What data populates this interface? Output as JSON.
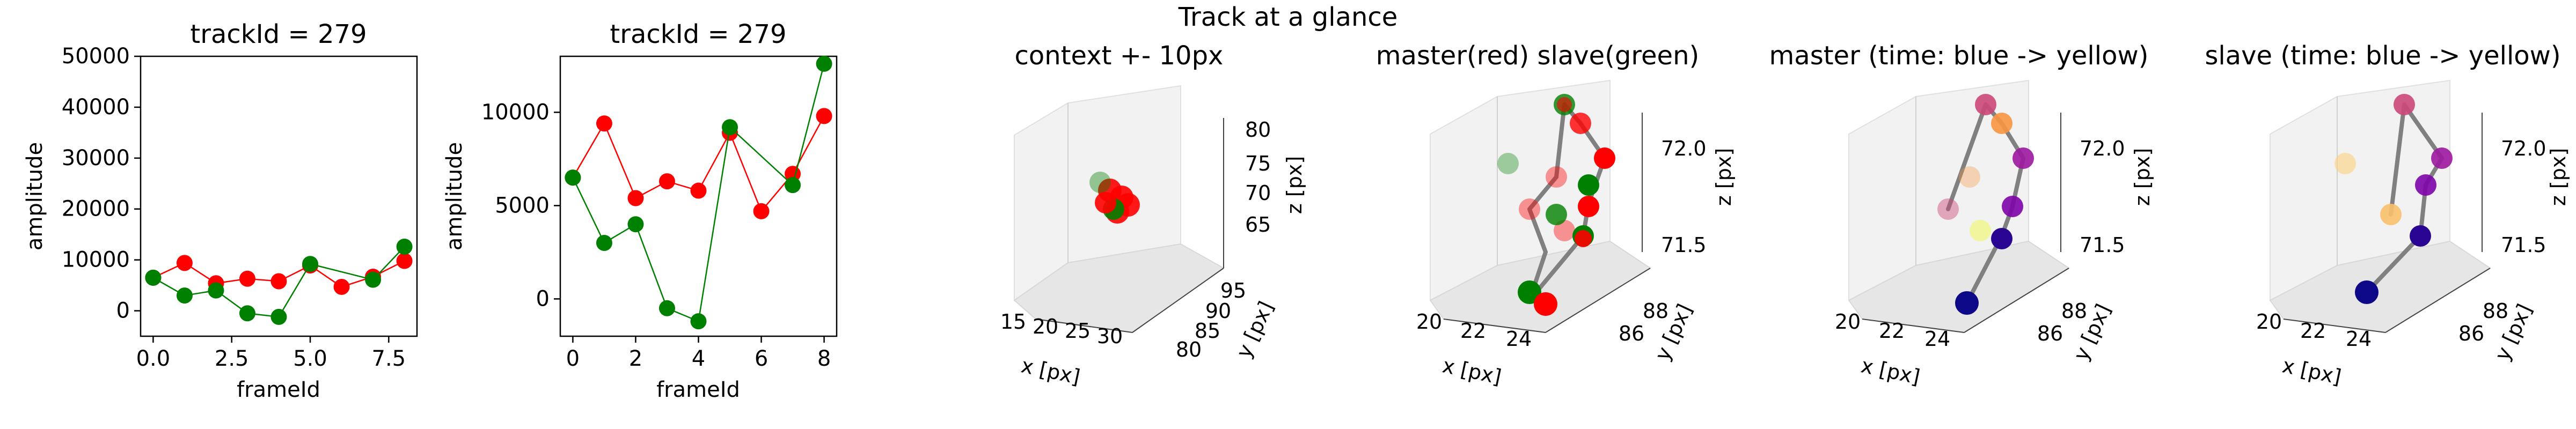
{
  "figure_title": "Track at a glance",
  "chart_data": [
    {
      "type": "line",
      "title": "trackId = 279",
      "xlabel": "frameId",
      "ylabel": "amplitude",
      "xlim": [
        -0.4,
        8.4
      ],
      "ylim": [
        -5000,
        50000
      ],
      "xticks": [
        "0.0",
        "2.5",
        "5.0",
        "7.5"
      ],
      "yticks": [
        "0",
        "10000",
        "20000",
        "30000",
        "40000",
        "50000"
      ],
      "grid": false,
      "series": [
        {
          "color": "#ff0000",
          "x": [
            0,
            1,
            2,
            3,
            4,
            5,
            6,
            7,
            8
          ],
          "values": [
            6500,
            9400,
            5400,
            6300,
            5800,
            8900,
            4700,
            6700,
            9800
          ]
        },
        {
          "color": "#008000",
          "x": [
            0,
            1,
            2,
            3,
            4,
            5,
            6,
            7,
            8
          ],
          "values": [
            6500,
            3000,
            4000,
            -500,
            -1200,
            9200,
            null,
            6100,
            12600
          ]
        }
      ]
    },
    {
      "type": "line",
      "title": "trackId = 279",
      "xlabel": "frameId",
      "ylabel": "amplitude",
      "xlim": [
        -0.4,
        8.4
      ],
      "ylim": [
        -2000,
        13000
      ],
      "xticks": [
        "0",
        "2",
        "4",
        "6",
        "8"
      ],
      "yticks": [
        "0",
        "5000",
        "10000"
      ],
      "grid": false,
      "series": [
        {
          "color": "#ff0000",
          "x": [
            0,
            1,
            2,
            3,
            4,
            5,
            6,
            7,
            8
          ],
          "values": [
            6500,
            9400,
            5400,
            6300,
            5800,
            8900,
            4700,
            6700,
            9800
          ]
        },
        {
          "color": "#008000",
          "x": [
            0,
            1,
            2,
            3,
            4,
            5,
            6,
            7,
            8
          ],
          "values": [
            6500,
            3000,
            4000,
            -500,
            -1200,
            9200,
            null,
            6100,
            12600
          ]
        }
      ]
    },
    {
      "type": "scatter",
      "projection": "3d",
      "title": "context +- 10px",
      "xlabel": "x [px]",
      "ylabel": "y [px]",
      "zlabel": "z [px]",
      "xticks": [
        "15",
        "20",
        "25",
        "30"
      ],
      "yticks": [
        "80",
        "85",
        "90",
        "95"
      ],
      "zticks": [
        "65",
        "70",
        "75",
        "80"
      ],
      "colors": {
        "master": "#ff0000",
        "slave": "#008000"
      }
    },
    {
      "type": "scatter",
      "projection": "3d",
      "title": "master(red) slave(green)",
      "xlabel": "x [px]",
      "ylabel": "y [px]",
      "zlabel": "z [px]",
      "xticks": [
        "20",
        "22",
        "24"
      ],
      "yticks": [
        "86",
        "88"
      ],
      "zticks": [
        "71.5",
        "72.0"
      ],
      "colors": {
        "master": "#ff0000",
        "slave": "#008000",
        "link": "#808080"
      }
    },
    {
      "type": "scatter",
      "projection": "3d",
      "title": "master (time: blue -> yellow)",
      "xlabel": "x [px]",
      "ylabel": "y [px]",
      "zlabel": "z [px]",
      "xticks": [
        "20",
        "22",
        "24"
      ],
      "yticks": [
        "86",
        "88"
      ],
      "zticks": [
        "71.5",
        "72.0"
      ],
      "colormap": [
        "#0d0887",
        "#7e03a8",
        "#cc4778",
        "#f89540",
        "#f0f921"
      ]
    },
    {
      "type": "scatter",
      "projection": "3d",
      "title": "slave (time: blue -> yellow)",
      "xlabel": "x [px]",
      "ylabel": "y [px]",
      "zlabel": "z [px]",
      "xticks": [
        "20",
        "22",
        "24"
      ],
      "yticks": [
        "86",
        "88"
      ],
      "zticks": [
        "71.5",
        "72.0"
      ],
      "colormap": [
        "#0d0887",
        "#7e03a8",
        "#cc4778",
        "#f89540",
        "#f0f921"
      ]
    }
  ]
}
